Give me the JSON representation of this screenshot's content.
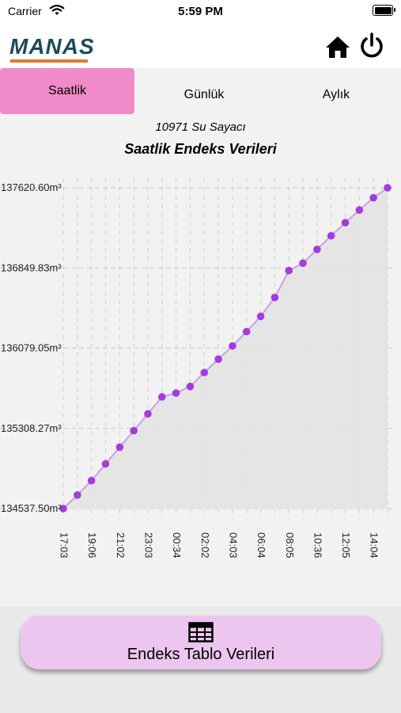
{
  "status_bar": {
    "carrier": "Carrier",
    "time": "5:59 PM"
  },
  "header": {
    "logo_text": "MANAS",
    "home_icon": "home-icon",
    "power_icon": "power-icon"
  },
  "tabs": [
    {
      "label": "Saatlik",
      "active": true
    },
    {
      "label": "Günlük",
      "active": false
    },
    {
      "label": "Aylık",
      "active": false
    }
  ],
  "subtitle": "10971 Su Sayacı",
  "title": "Saatlik Endeks Verileri",
  "colors": {
    "accent": "#f08ac8",
    "point": "#a43be0",
    "line": "#c9a0e6",
    "area": "#e3e3e3",
    "button": "#ecc6ee"
  },
  "chart_data": {
    "type": "line",
    "y_ticks": [
      "137620.60m³",
      "136849.83m³",
      "136079.05m³",
      "135308.27m³",
      "134537.50m³"
    ],
    "ylim": [
      134537.5,
      137620.6
    ],
    "x_tick_labels": [
      "17:03",
      "19:06",
      "21:02",
      "23:03",
      "00:34",
      "02:02",
      "04:03",
      "06:04",
      "08:05",
      "10:36",
      "12:05",
      "14:04"
    ],
    "x_tick_positions": [
      0,
      2,
      4,
      6,
      8,
      10,
      12,
      14,
      16,
      18,
      20,
      22
    ],
    "values": [
      134537.5,
      134668,
      134806,
      134967,
      135128,
      135286,
      135448,
      135611,
      135648,
      135711,
      135845,
      135974,
      136100,
      136238,
      136385,
      136566,
      136825,
      136896,
      137028,
      137159,
      137285,
      137407,
      137524,
      137620.6
    ],
    "grid": true,
    "fill_area": true
  },
  "table_button": {
    "label": "Endeks Tablo Verileri",
    "icon": "table-icon"
  }
}
